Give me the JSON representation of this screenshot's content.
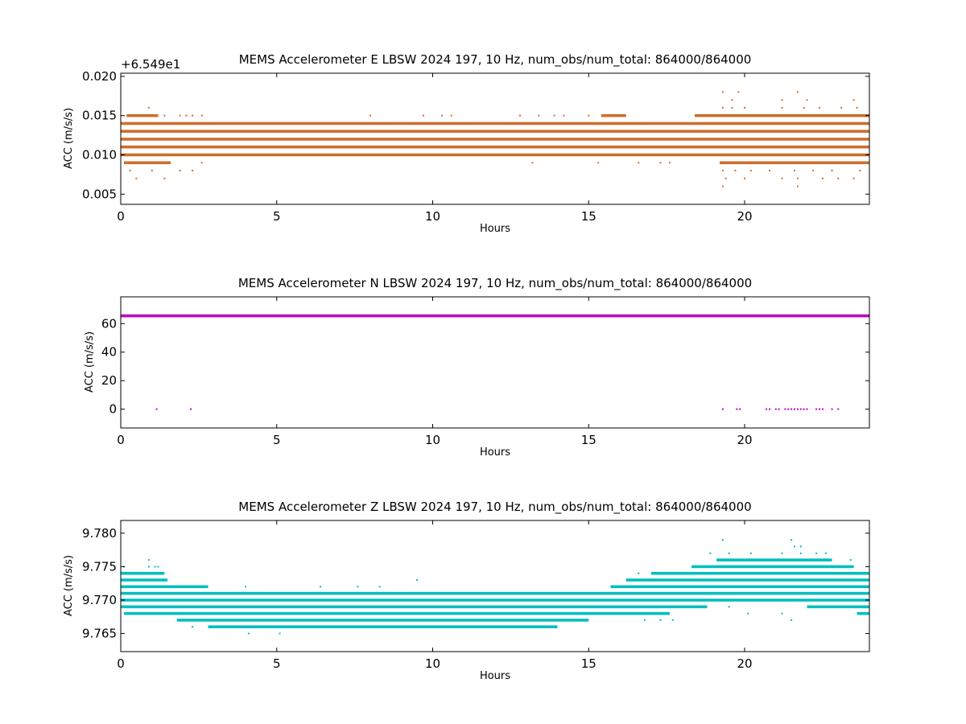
{
  "chart_data": [
    {
      "type": "scatter",
      "title": "MEMS Accelerometer E LBSW 2024 197, 10 Hz, num_obs/num_total: 864000/864000",
      "xlabel": "Hours",
      "ylabel": "ACC (m/s/s)",
      "offset_label": "+6.549e1",
      "xlim": [
        0,
        24
      ],
      "ylim": [
        0.0037,
        0.0204
      ],
      "xticks": [
        0,
        5,
        10,
        15,
        20
      ],
      "xtick_labels": [
        "0",
        "5",
        "10",
        "15",
        "20"
      ],
      "yticks": [
        0.005,
        0.01,
        0.015,
        0.02
      ],
      "ytick_labels": [
        "0.005",
        "0.010",
        "0.015",
        "0.020"
      ],
      "grid": false,
      "color": "#cc6e2e",
      "series": [
        {
          "bands": [
            {
              "y": 0.014,
              "segments": [
                [
                  0,
                  24
                ]
              ]
            },
            {
              "y": 0.013,
              "segments": [
                [
                  0,
                  24
                ]
              ]
            },
            {
              "y": 0.012,
              "segments": [
                [
                  0,
                  24
                ]
              ]
            },
            {
              "y": 0.011,
              "segments": [
                [
                  0,
                  24
                ]
              ]
            },
            {
              "y": 0.01,
              "segments": [
                [
                  0,
                  24
                ]
              ]
            },
            {
              "y": 0.015,
              "segments": [
                [
                  0.2,
                  1.2
                ],
                [
                  15.4,
                  16.2
                ],
                [
                  18.4,
                  24
                ]
              ]
            },
            {
              "y": 0.009,
              "segments": [
                [
                  0.1,
                  1.6
                ],
                [
                  19.2,
                  24
                ]
              ]
            }
          ],
          "points": [
            [
              0.2,
              0.015
            ],
            [
              0.5,
              0.015
            ],
            [
              0.9,
              0.016
            ],
            [
              1.1,
              0.015
            ],
            [
              1.4,
              0.015
            ],
            [
              1.9,
              0.015
            ],
            [
              2.1,
              0.015
            ],
            [
              2.3,
              0.015
            ],
            [
              2.6,
              0.015
            ],
            [
              8.0,
              0.015
            ],
            [
              9.7,
              0.015
            ],
            [
              10.3,
              0.015
            ],
            [
              10.6,
              0.015
            ],
            [
              12.8,
              0.015
            ],
            [
              13.4,
              0.015
            ],
            [
              13.9,
              0.015
            ],
            [
              14.2,
              0.015
            ],
            [
              15.0,
              0.015
            ],
            [
              0.3,
              0.008
            ],
            [
              0.5,
              0.007
            ],
            [
              1.0,
              0.008
            ],
            [
              1.4,
              0.007
            ],
            [
              1.9,
              0.008
            ],
            [
              2.3,
              0.008
            ],
            [
              2.6,
              0.009
            ],
            [
              13.2,
              0.009
            ],
            [
              15.3,
              0.009
            ],
            [
              16.6,
              0.009
            ],
            [
              17.3,
              0.009
            ],
            [
              17.6,
              0.009
            ],
            [
              19.3,
              0.018
            ],
            [
              19.8,
              0.018
            ],
            [
              21.7,
              0.018
            ],
            [
              19.6,
              0.017
            ],
            [
              21.2,
              0.017
            ],
            [
              22.0,
              0.017
            ],
            [
              23.5,
              0.017
            ],
            [
              19.3,
              0.016
            ],
            [
              19.6,
              0.016
            ],
            [
              20.0,
              0.016
            ],
            [
              21.2,
              0.016
            ],
            [
              21.9,
              0.016
            ],
            [
              22.4,
              0.016
            ],
            [
              23.1,
              0.016
            ],
            [
              23.6,
              0.016
            ],
            [
              19.3,
              0.008
            ],
            [
              19.7,
              0.008
            ],
            [
              20.2,
              0.008
            ],
            [
              20.8,
              0.008
            ],
            [
              21.6,
              0.008
            ],
            [
              22.2,
              0.008
            ],
            [
              22.8,
              0.008
            ],
            [
              23.7,
              0.008
            ],
            [
              19.4,
              0.007
            ],
            [
              20.0,
              0.007
            ],
            [
              21.2,
              0.007
            ],
            [
              21.7,
              0.007
            ],
            [
              22.5,
              0.007
            ],
            [
              23.0,
              0.007
            ],
            [
              23.5,
              0.007
            ],
            [
              19.3,
              0.006
            ],
            [
              21.7,
              0.006
            ]
          ]
        }
      ]
    },
    {
      "type": "scatter",
      "title": "MEMS Accelerometer N LBSW 2024 197, 10 Hz, num_obs/num_total: 864000/864000",
      "xlabel": "Hours",
      "ylabel": "ACC (m/s/s)",
      "xlim": [
        0,
        24
      ],
      "ylim": [
        -13.2,
        78.8
      ],
      "xticks": [
        0,
        5,
        10,
        15,
        20
      ],
      "xtick_labels": [
        "0",
        "5",
        "10",
        "15",
        "20"
      ],
      "yticks": [
        0,
        20,
        40,
        60
      ],
      "ytick_labels": [
        "0",
        "20",
        "40",
        "60"
      ],
      "grid": false,
      "color": "#bf00bf",
      "series": [
        {
          "bands": [
            {
              "y": 65.5,
              "segments": [
                [
                  0,
                  24
                ]
              ]
            }
          ],
          "points": [
            [
              1.15,
              0
            ],
            [
              2.25,
              0
            ],
            [
              19.3,
              0
            ],
            [
              19.75,
              0
            ],
            [
              19.85,
              0
            ],
            [
              20.7,
              0
            ],
            [
              20.8,
              0
            ],
            [
              21.0,
              0
            ],
            [
              21.1,
              0
            ],
            [
              21.3,
              0
            ],
            [
              21.4,
              0
            ],
            [
              21.5,
              0
            ],
            [
              21.6,
              0
            ],
            [
              21.7,
              0
            ],
            [
              21.8,
              0
            ],
            [
              21.9,
              0
            ],
            [
              22.0,
              0
            ],
            [
              22.3,
              0
            ],
            [
              22.4,
              0
            ],
            [
              22.5,
              0
            ],
            [
              22.8,
              0
            ],
            [
              23.0,
              0
            ]
          ]
        }
      ]
    },
    {
      "type": "scatter",
      "title": "MEMS Accelerometer Z LBSW 2024 197, 10 Hz, num_obs/num_total: 864000/864000",
      "xlabel": "Hours",
      "ylabel": "ACC (m/s/s)",
      "xlim": [
        0,
        24
      ],
      "ylim": [
        9.7623,
        9.7819
      ],
      "xticks": [
        0,
        5,
        10,
        15,
        20
      ],
      "xtick_labels": [
        "0",
        "5",
        "10",
        "15",
        "20"
      ],
      "yticks": [
        9.765,
        9.77,
        9.775,
        9.78
      ],
      "ytick_labels": [
        "9.765",
        "9.770",
        "9.775",
        "9.780"
      ],
      "grid": false,
      "color": "#00bfbf",
      "series": [
        {
          "bands": [
            {
              "y": 9.774,
              "segments": [
                [
                  0,
                  1.4
                ]
              ]
            },
            {
              "y": 9.773,
              "segments": [
                [
                  0,
                  1.5
                ],
                [
                  16.2,
                  24
                ]
              ]
            },
            {
              "y": 9.772,
              "segments": [
                [
                  0,
                  2.8
                ],
                [
                  15.7,
                  24
                ]
              ]
            },
            {
              "y": 9.771,
              "segments": [
                [
                  0,
                  24
                ]
              ]
            },
            {
              "y": 9.77,
              "segments": [
                [
                  0,
                  24
                ]
              ]
            },
            {
              "y": 9.769,
              "segments": [
                [
                  0,
                  18.8
                ],
                [
                  22.0,
                  24
                ]
              ]
            },
            {
              "y": 9.768,
              "segments": [
                [
                  0.1,
                  17.6
                ],
                [
                  23.6,
                  24
                ]
              ]
            },
            {
              "y": 9.767,
              "segments": [
                [
                  1.8,
                  15.0
                ]
              ]
            },
            {
              "y": 9.766,
              "segments": [
                [
                  2.8,
                  14.0
                ]
              ]
            },
            {
              "y": 9.774,
              "segments": [
                [
                  17.0,
                  24
                ]
              ]
            },
            {
              "y": 9.775,
              "segments": [
                [
                  18.3,
                  23.5
                ]
              ]
            },
            {
              "y": 9.776,
              "segments": [
                [
                  19.1,
                  22.8
                ]
              ]
            }
          ],
          "points": [
            [
              0.9,
              9.776
            ],
            [
              0.9,
              9.775
            ],
            [
              1.1,
              9.775
            ],
            [
              1.2,
              9.775
            ],
            [
              0.1,
              9.775
            ],
            [
              4.1,
              9.765
            ],
            [
              5.1,
              9.765
            ],
            [
              2.3,
              9.766
            ],
            [
              4.0,
              9.772
            ],
            [
              6.4,
              9.772
            ],
            [
              7.6,
              9.772
            ],
            [
              8.3,
              9.772
            ],
            [
              9.5,
              9.773
            ],
            [
              16.6,
              9.774
            ],
            [
              17.2,
              9.774
            ],
            [
              17.7,
              9.767
            ],
            [
              17.3,
              9.767
            ],
            [
              16.8,
              9.767
            ],
            [
              19.3,
              9.779
            ],
            [
              21.5,
              9.779
            ],
            [
              18.9,
              9.777
            ],
            [
              19.5,
              9.777
            ],
            [
              20.2,
              9.777
            ],
            [
              21.2,
              9.777
            ],
            [
              21.8,
              9.777
            ],
            [
              22.3,
              9.777
            ],
            [
              22.6,
              9.777
            ],
            [
              21.6,
              9.778
            ],
            [
              21.8,
              9.778
            ],
            [
              23.4,
              9.776
            ],
            [
              19.5,
              9.769
            ],
            [
              20.1,
              9.768
            ],
            [
              21.2,
              9.768
            ],
            [
              21.5,
              9.767
            ]
          ]
        }
      ]
    }
  ]
}
